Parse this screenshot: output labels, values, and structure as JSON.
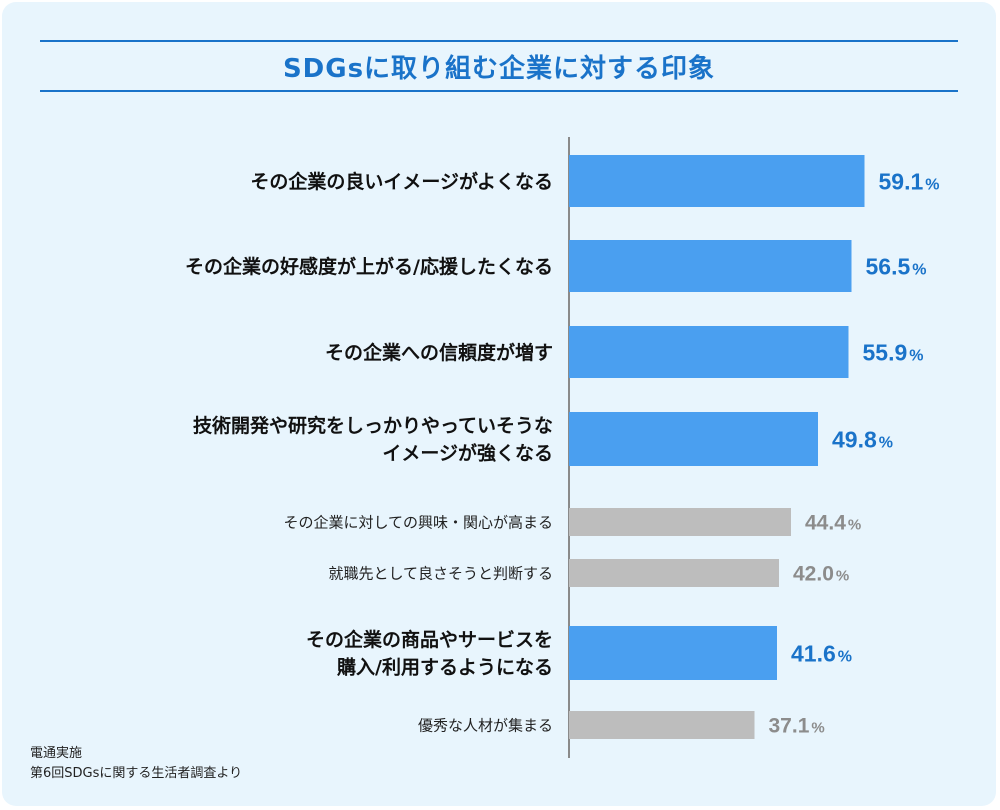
{
  "title": "SDGsに取り組む企業に対する印象",
  "notes": [
    "電通実施",
    "第6回SDGsに関する生活者調査より"
  ],
  "colors": {
    "highlight": "#4a9ff0",
    "muted": "#bdbdbd",
    "highlight_text": "#1a73c9",
    "muted_text": "#8c8c8c"
  },
  "chart_data": {
    "type": "bar",
    "orientation": "horizontal",
    "title": "SDGsに取り組む企業に対する印象",
    "unit": "%",
    "xlim": [
      0,
      100
    ],
    "categories": [
      [
        "その企業の良いイメージがよくなる"
      ],
      [
        "その企業の好感度が上がる/応援したくなる"
      ],
      [
        "その企業への信頼度が増す"
      ],
      [
        "技術開発や研究をしっかりやっていそうな",
        "イメージが強くなる"
      ],
      [
        "その企業に対しての興味・関心が高まる"
      ],
      [
        "就職先として良さそうと判断する"
      ],
      [
        "その企業の商品やサービスを",
        "購入/利用するようになる"
      ],
      [
        "優秀な人材が集まる"
      ]
    ],
    "values": [
      59.1,
      56.5,
      55.9,
      49.8,
      44.4,
      42.0,
      41.6,
      37.1
    ],
    "value_labels": [
      "59.1",
      "56.5",
      "55.9",
      "49.8",
      "44.4",
      "42.0",
      "41.6",
      "37.1"
    ],
    "highlighted": [
      true,
      true,
      true,
      true,
      false,
      false,
      true,
      false
    ]
  }
}
